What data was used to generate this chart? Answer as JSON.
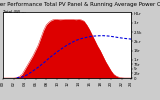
{
  "title": "Solar PV/Inverter Performance Total PV Panel & Running Average Power Output",
  "legend_label": "Total (W) ---",
  "bg_color": "#cccccc",
  "plot_bg_color": "#ffffff",
  "bar_color": "#dd0000",
  "line_color": "#0000dd",
  "grid_color": "#ffffff",
  "ylim": [
    0,
    3600
  ],
  "xlim": [
    0,
    95
  ],
  "yticks": [
    0,
    250,
    500,
    750,
    1000,
    1500,
    2000,
    2500,
    3000,
    3500
  ],
  "ytick_labels": [
    "0",
    "25r",
    "5r",
    "75r",
    "1.r",
    "1Sr",
    "2k.r",
    "2.5k",
    "3.r",
    "HiLr"
  ],
  "title_fontsize": 4.0,
  "tick_fontsize": 2.8,
  "pv_x": [
    0,
    4,
    8,
    10,
    12,
    14,
    16,
    18,
    20,
    22,
    24,
    26,
    28,
    30,
    32,
    34,
    36,
    38,
    40,
    42,
    44,
    46,
    48,
    50,
    52,
    54,
    56,
    58,
    60,
    62,
    64,
    66,
    68,
    70,
    72,
    74,
    76,
    78,
    80,
    82,
    84,
    86,
    88,
    90,
    92,
    94,
    95
  ],
  "pv_y": [
    0,
    0,
    0,
    20,
    80,
    200,
    450,
    700,
    950,
    1200,
    1500,
    1800,
    2200,
    2600,
    2900,
    3050,
    3150,
    3200,
    3200,
    3180,
    3190,
    3200,
    3200,
    3200,
    3200,
    3180,
    3200,
    3170,
    3100,
    2900,
    2650,
    2350,
    2050,
    1750,
    1500,
    1200,
    900,
    650,
    400,
    200,
    100,
    40,
    10,
    0,
    0,
    0,
    0
  ],
  "avg_x": [
    10,
    14,
    18,
    22,
    26,
    30,
    34,
    38,
    42,
    46,
    50,
    54,
    58,
    62,
    66,
    70,
    74,
    78,
    82,
    86,
    90,
    94,
    95
  ],
  "avg_y": [
    10,
    50,
    180,
    380,
    590,
    820,
    1080,
    1310,
    1530,
    1730,
    1900,
    2050,
    2150,
    2220,
    2280,
    2300,
    2310,
    2290,
    2250,
    2200,
    2160,
    2130,
    2120
  ],
  "xtick_positions": [
    0,
    8,
    16,
    24,
    32,
    40,
    48,
    56,
    64,
    72,
    80,
    88,
    95
  ],
  "xtick_labels": [
    "00",
    "02",
    "04",
    "06",
    "08",
    "10",
    "12",
    "14",
    "16",
    "18",
    "20",
    "22",
    "24"
  ]
}
